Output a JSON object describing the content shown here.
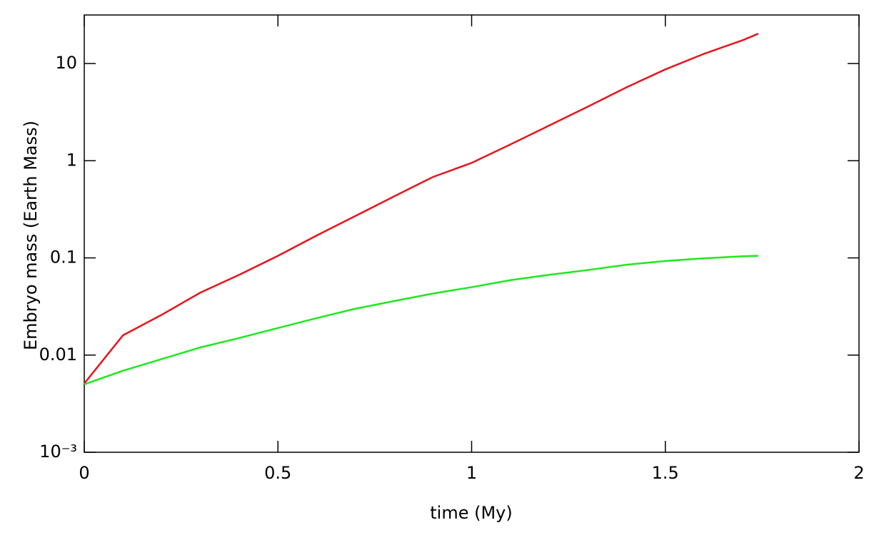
{
  "chart_data": {
    "type": "line",
    "xlabel": "time (My)",
    "ylabel": "Embryo mass (Earth Mass)",
    "x": [
      0,
      0.1,
      0.2,
      0.3,
      0.4,
      0.5,
      0.6,
      0.7,
      0.8,
      0.9,
      1.0,
      1.1,
      1.2,
      1.3,
      1.4,
      1.5,
      1.6,
      1.7,
      1.74
    ],
    "series": [
      {
        "color": "#e8141c",
        "values": [
          0.0051,
          0.016,
          0.026,
          0.044,
          0.067,
          0.105,
          0.17,
          0.27,
          0.43,
          0.68,
          0.95,
          1.47,
          2.3,
          3.6,
          5.7,
          8.7,
          12.6,
          17.4,
          20.3
        ]
      },
      {
        "color": "#1ee81e",
        "values": [
          0.005,
          0.0069,
          0.0091,
          0.012,
          0.015,
          0.019,
          0.024,
          0.03,
          0.036,
          0.043,
          0.05,
          0.059,
          0.067,
          0.075,
          0.085,
          0.093,
          0.099,
          0.104,
          0.105
        ]
      }
    ],
    "xlim": [
      0,
      2
    ],
    "xticks": [
      0,
      0.5,
      1,
      1.5,
      2
    ],
    "ylim": [
      0.001,
      31.6
    ],
    "yscale": "log",
    "yticks": [
      {
        "value": 0.001,
        "label": "10⁻³"
      },
      0.01,
      0.1,
      1,
      10
    ]
  }
}
